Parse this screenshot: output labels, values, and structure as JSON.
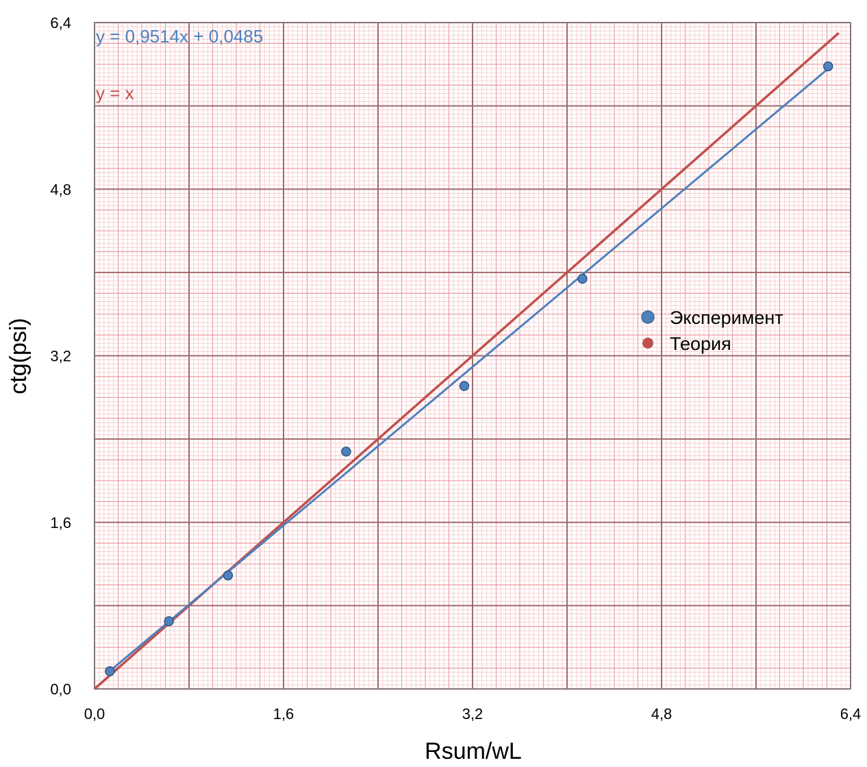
{
  "chart_data": {
    "type": "scatter",
    "xlabel": "Rsum/wL",
    "ylabel": "ctg(psi)",
    "xlim": [
      0,
      6.4
    ],
    "ylim": [
      0,
      6.4
    ],
    "x_ticks": [
      "0,0",
      "1,6",
      "3,2",
      "4,8",
      "6,4"
    ],
    "y_ticks": [
      "0,0",
      "1,6",
      "3,2",
      "4,8",
      "6,4"
    ],
    "x_tick_values": [
      0,
      1.6,
      3.2,
      4.8,
      6.4
    ],
    "y_tick_values": [
      0,
      1.6,
      3.2,
      4.8,
      6.4
    ],
    "grid": true,
    "legend_position": "right",
    "series": [
      {
        "name": "Эксперимент",
        "color": "#4f81bd",
        "marker": "circle",
        "points": [
          {
            "x": 0.13,
            "y": 0.17
          },
          {
            "x": 0.63,
            "y": 0.65
          },
          {
            "x": 1.13,
            "y": 1.09
          },
          {
            "x": 2.13,
            "y": 2.28
          },
          {
            "x": 3.13,
            "y": 2.91
          },
          {
            "x": 4.13,
            "y": 3.94
          },
          {
            "x": 6.21,
            "y": 5.98
          }
        ],
        "trendline": {
          "slope": 0.9514,
          "intercept": 0.0485,
          "x_range": [
            0.13,
            6.21
          ],
          "label": "y = 0,9514x + 0,0485"
        }
      },
      {
        "name": "Теория",
        "color": "#c0504d",
        "marker": "circle",
        "points": [],
        "trendline": {
          "slope": 1,
          "intercept": 0,
          "x_range": [
            0,
            6.3
          ],
          "label": "y = x"
        }
      }
    ]
  }
}
